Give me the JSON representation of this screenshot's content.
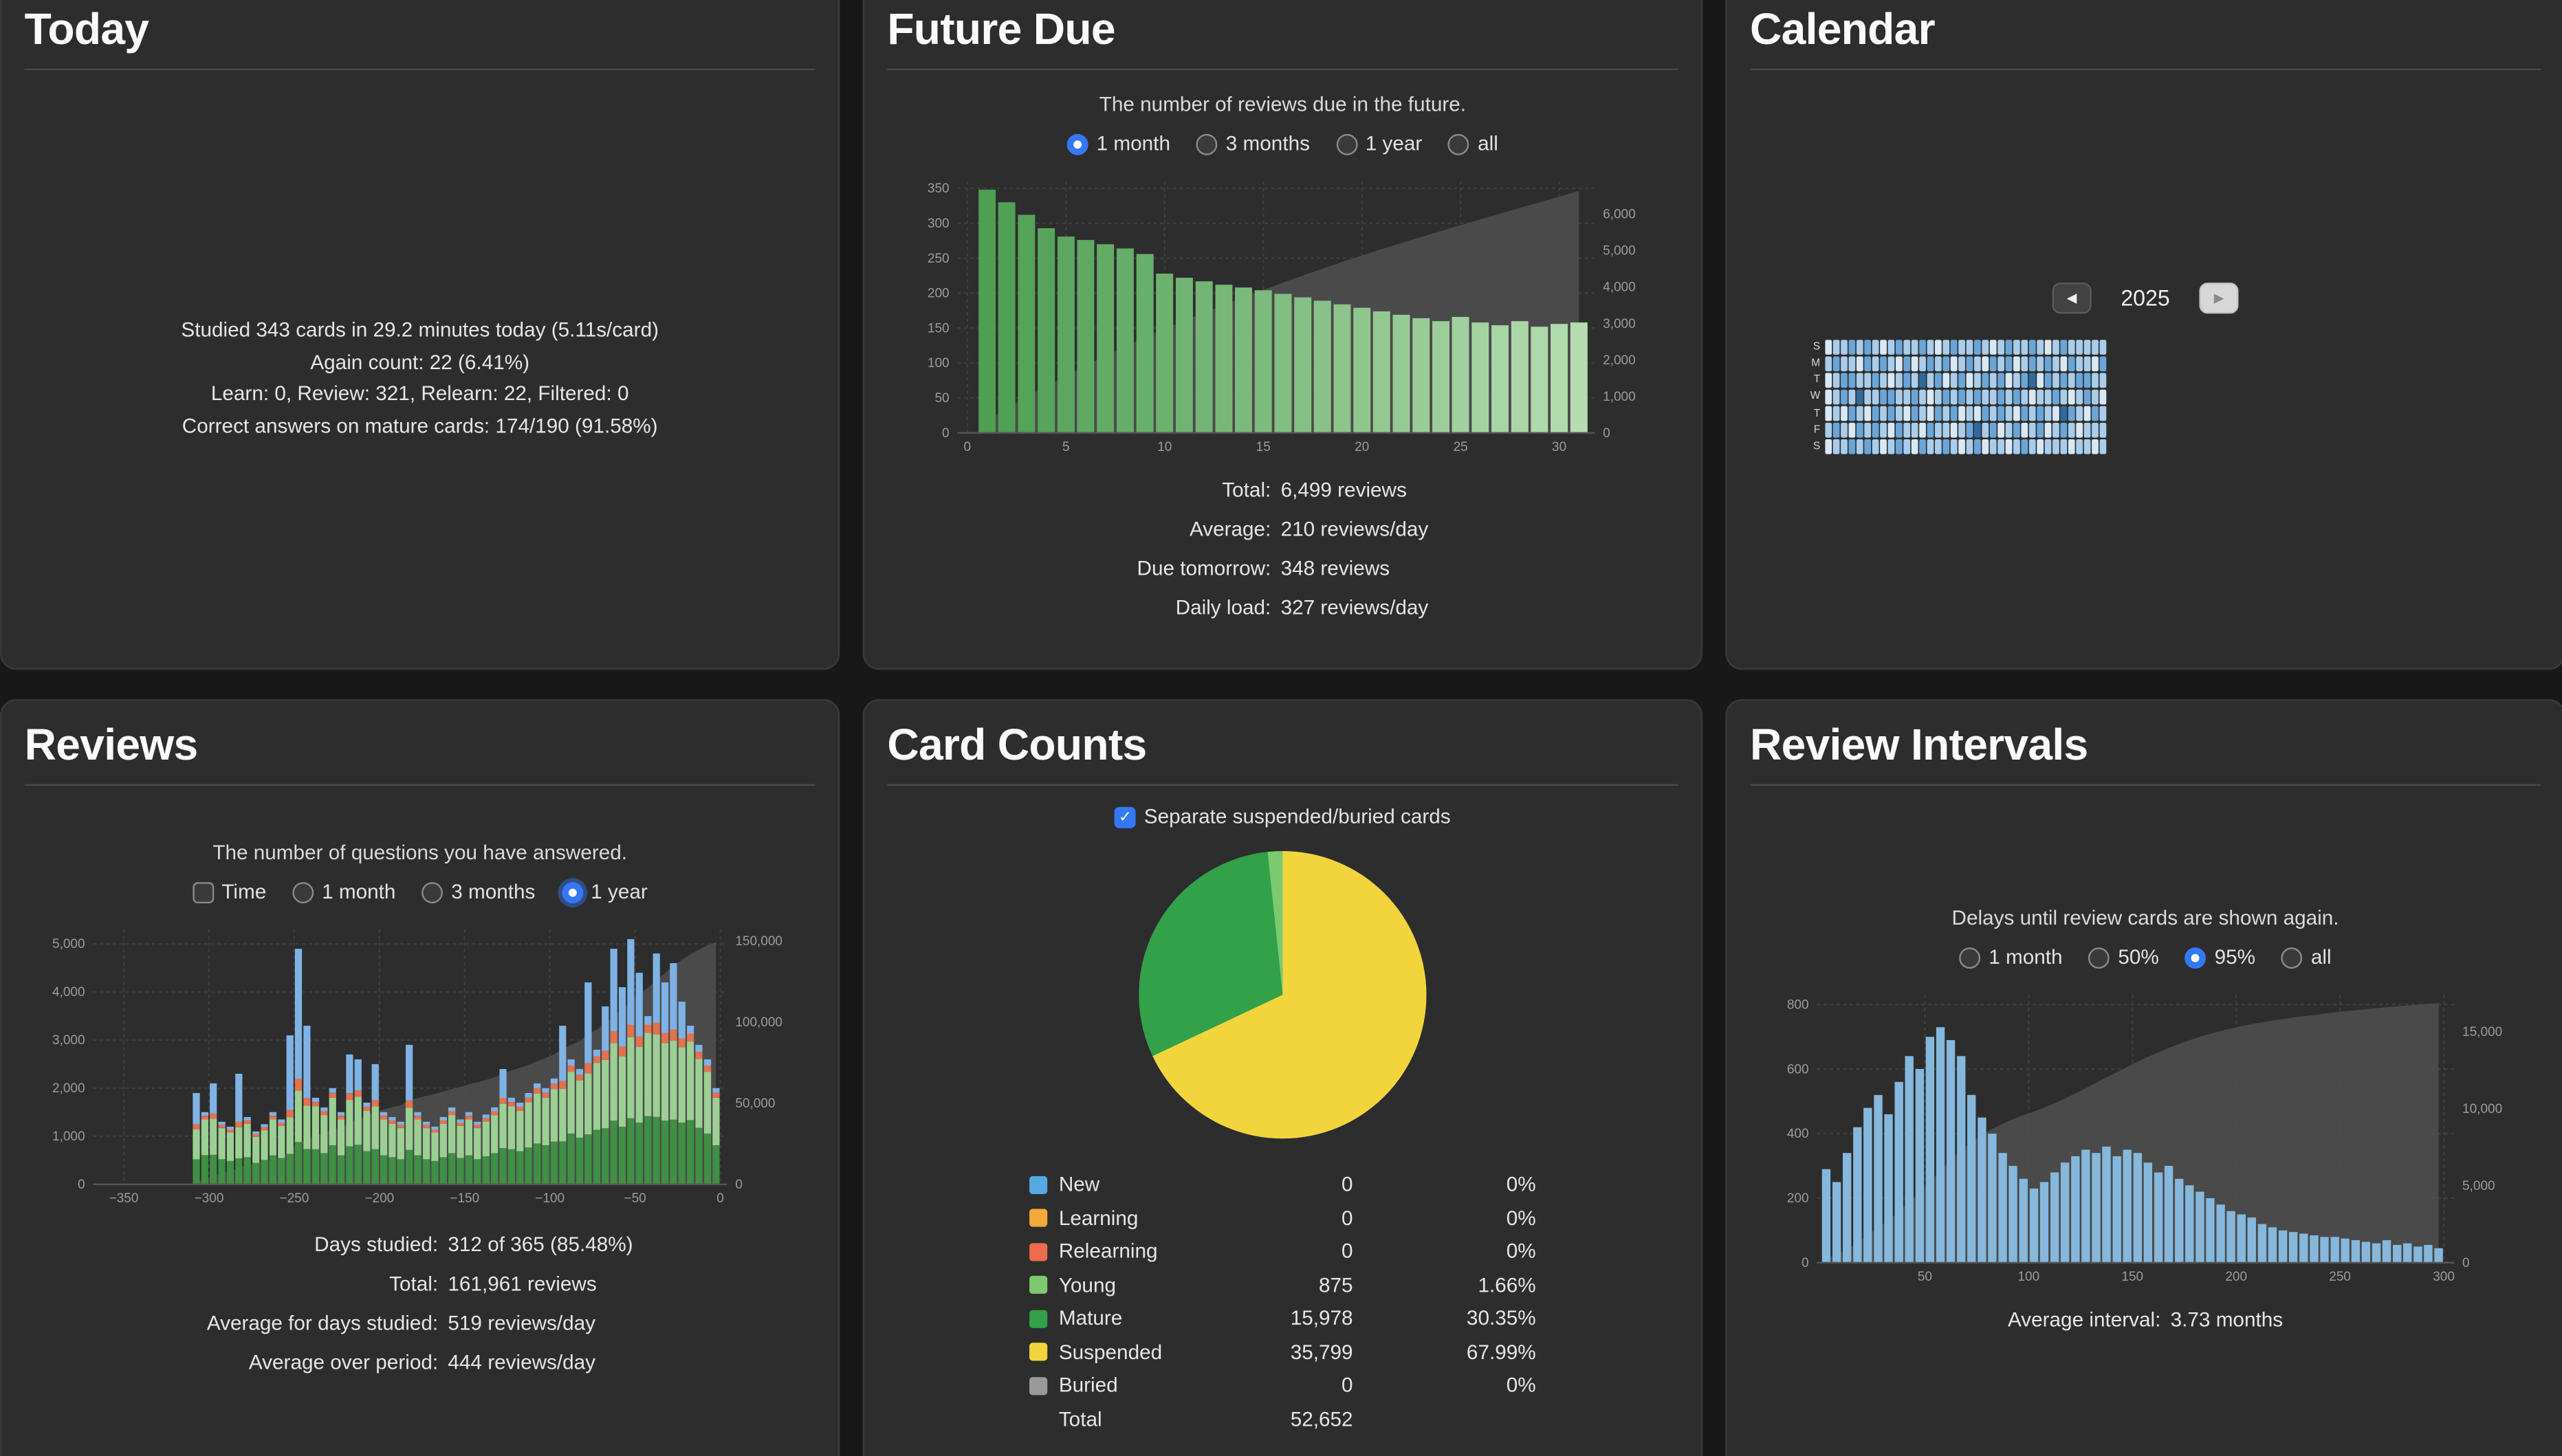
{
  "colors": {
    "accent": "#3478f6",
    "page_bg": "#181818",
    "panel_bg": "#2d2d2d",
    "cumulative_area": "#4d4d4d",
    "future_bar_start": "#4e9e53",
    "future_bar_end": "#b5ddb0",
    "intervals_bar": "#85b8dc",
    "reviews_series": {
      "mature": "#3f8f44",
      "young": "#9ccf93",
      "relearn": "#e4714e",
      "learn": "#7fb2e5"
    },
    "calendar_palette": [
      "#d9e8f5",
      "#a9cdea",
      "#6aa5d8",
      "#31699c"
    ],
    "legend": {
      "new": "#55a8e2",
      "learning": "#f5a83c",
      "relearning": "#ee6b4d",
      "young": "#7cc96f",
      "mature": "#33a04a",
      "suspended": "#f2d53d",
      "buried": "#9a9a9a"
    }
  },
  "panels": {
    "today": {
      "title": "Today",
      "lines": [
        "Studied 343 cards in 29.2 minutes today (5.11s/card)",
        "Again count: 22 (6.41%)",
        "Learn: 0, Review: 321, Relearn: 22, Filtered: 0",
        "Correct answers on mature cards: 174/190 (91.58%)"
      ]
    },
    "future_due": {
      "title": "Future Due",
      "subtitle": "The number of reviews due in the future.",
      "options": [
        {
          "label": "1 month",
          "selected": true
        },
        {
          "label": "3 months",
          "selected": false
        },
        {
          "label": "1 year",
          "selected": false
        },
        {
          "label": "all",
          "selected": false
        }
      ],
      "stats": [
        {
          "label": "Total:",
          "value": "6,499 reviews"
        },
        {
          "label": "Average:",
          "value": "210 reviews/day"
        },
        {
          "label": "Due tomorrow:",
          "value": "348 reviews"
        },
        {
          "label": "Daily load:",
          "value": "327 reviews/day"
        }
      ]
    },
    "calendar": {
      "title": "Calendar",
      "year": "2025",
      "prev_label": "◀",
      "next_label": "▶",
      "day_labels": [
        "S",
        "M",
        "T",
        "W",
        "T",
        "F",
        "S"
      ]
    },
    "reviews": {
      "title": "Reviews",
      "subtitle": "The number of questions you have answered.",
      "time_checkbox": {
        "label": "Time",
        "checked": false
      },
      "options": [
        {
          "label": "1 month",
          "selected": false
        },
        {
          "label": "3 months",
          "selected": false
        },
        {
          "label": "1 year",
          "selected": true,
          "focus_ring": true
        }
      ],
      "stats": [
        {
          "label": "Days studied:",
          "value": "312 of 365 (85.48%)"
        },
        {
          "label": "Total:",
          "value": "161,961 reviews"
        },
        {
          "label": "Average for days studied:",
          "value": "519 reviews/day"
        },
        {
          "label": "Average over period:",
          "value": "444 reviews/day"
        }
      ]
    },
    "card_counts": {
      "title": "Card Counts",
      "checkbox": {
        "label": "Separate suspended/buried cards",
        "checked": true
      },
      "rows": [
        {
          "label": "New",
          "count": "0",
          "pct": "0%",
          "pct_num": 0,
          "color_key": "new"
        },
        {
          "label": "Learning",
          "count": "0",
          "pct": "0%",
          "pct_num": 0,
          "color_key": "learning"
        },
        {
          "label": "Relearning",
          "count": "0",
          "pct": "0%",
          "pct_num": 0,
          "color_key": "relearning"
        },
        {
          "label": "Young",
          "count": "875",
          "pct": "1.66%",
          "pct_num": 1.66,
          "color_key": "young"
        },
        {
          "label": "Mature",
          "count": "15,978",
          "pct": "30.35%",
          "pct_num": 30.35,
          "color_key": "mature"
        },
        {
          "label": "Suspended",
          "count": "35,799",
          "pct": "67.99%",
          "pct_num": 67.99,
          "color_key": "suspended"
        },
        {
          "label": "Buried",
          "count": "0",
          "pct": "0%",
          "pct_num": 0,
          "color_key": "buried"
        }
      ],
      "total": {
        "label": "Total",
        "count": "52,652"
      }
    },
    "review_intervals": {
      "title": "Review Intervals",
      "subtitle": "Delays until review cards are shown again.",
      "options": [
        {
          "label": "1 month",
          "selected": false
        },
        {
          "label": "50%",
          "selected": false
        },
        {
          "label": "95%",
          "selected": true
        },
        {
          "label": "all",
          "selected": false
        }
      ],
      "average": {
        "label": "Average interval:",
        "value": "3.73 months"
      }
    }
  },
  "chart_data": [
    {
      "name": "future_due",
      "type": "bar",
      "title": "Future Due",
      "x_first_day": 1,
      "values": [
        348,
        330,
        312,
        293,
        281,
        276,
        270,
        264,
        256,
        228,
        222,
        217,
        212,
        208,
        204,
        199,
        194,
        189,
        184,
        179,
        174,
        169,
        164,
        160,
        166,
        158,
        154,
        160,
        152,
        156,
        158
      ],
      "x_domain": [
        -0.5,
        31.8
      ],
      "x_ticks": [
        0,
        5,
        10,
        15,
        20,
        25,
        30
      ],
      "left_axis": {
        "max": 360,
        "ticks": [
          0,
          50,
          100,
          150,
          200,
          250,
          300,
          350
        ]
      },
      "right_axis": {
        "max": 6900,
        "ticks": [
          0,
          1000,
          2000,
          3000,
          4000,
          5000,
          6000
        ]
      },
      "cumulative": true,
      "total_reviews": 6499
    },
    {
      "name": "calendar",
      "type": "heatmap",
      "year": 2025,
      "rows": 7,
      "weeks": 36,
      "matrix": [
        "1211121",
        "2322232",
        "2233122",
        "3232313",
        "2124232",
        "3322123",
        "2232332",
        "1323221",
        "2213312",
        "3122233",
        "2332122",
        "2123321",
        "3242213",
        "2321132",
        "1232322",
        "2313223",
        "3122312",
        "2233121",
        "2312232",
        "3223143",
        "2132321",
        "1322232",
        "2233312",
        "3312221",
        "2123132",
        "2232313",
        "3341222",
        "2212331",
        "1332212",
        "2223122",
        "3132432",
        "2321321",
        "2232212",
        "2233122",
        "2122321",
        "2321222"
      ]
    },
    {
      "name": "reviews",
      "type": "stacked_bar",
      "title": "Reviews",
      "bin_days": 5,
      "x_first": -307.5,
      "x_domain": [
        -368,
        4
      ],
      "x_ticks": [
        -350,
        -300,
        -250,
        -200,
        -150,
        -100,
        -50,
        0
      ],
      "left_axis": {
        "max": 5300,
        "ticks": [
          0,
          1000,
          2000,
          3000,
          4000,
          5000
        ]
      },
      "right_axis": {
        "max": 157000,
        "ticks": [
          0,
          50000,
          100000,
          150000
        ]
      },
      "cumulative": true,
      "total_reviews": 161961,
      "series": [
        {
          "key": "mature",
          "name": "Mature",
          "values": [
            520,
            610,
            615,
            525,
            485,
            535,
            565,
            445,
            505,
            605,
            545,
            630,
            880,
            735,
            730,
            650,
            810,
            605,
            790,
            820,
            690,
            730,
            605,
            565,
            525,
            720,
            605,
            525,
            485,
            565,
            650,
            545,
            605,
            525,
            585,
            650,
            755,
            730,
            690,
            770,
            850,
            810,
            890,
            895,
            1055,
            970,
            1040,
            1135,
            1165,
            1325,
            1200,
            1375,
            1285,
            1420,
            1405,
            1325,
            1345,
            1285,
            1335,
            1175,
            1055,
            810
          ]
        },
        {
          "key": "young",
          "name": "Young",
          "values": [
            630,
            740,
            750,
            645,
            595,
            650,
            695,
            545,
            620,
            745,
            670,
            765,
            1075,
            900,
            890,
            790,
            990,
            745,
            965,
            1000,
            840,
            895,
            745,
            695,
            645,
            875,
            745,
            645,
            595,
            695,
            790,
            670,
            745,
            645,
            720,
            790,
            925,
            890,
            840,
            940,
            1040,
            990,
            1090,
            1090,
            1285,
            1190,
            1270,
            1385,
            1425,
            1615,
            1465,
            1685,
            1575,
            1730,
            1715,
            1615,
            1645,
            1565,
            1635,
            1435,
            1285,
            990
          ]
        },
        {
          "key": "relearn",
          "name": "Relearning",
          "values": [
            100,
            75,
            105,
            65,
            60,
            115,
            70,
            55,
            65,
            75,
            65,
            155,
            245,
            165,
            90,
            80,
            100,
            75,
            135,
            130,
            85,
            125,
            75,
            70,
            65,
            145,
            75,
            65,
            60,
            70,
            80,
            65,
            75,
            65,
            75,
            80,
            120,
            90,
            85,
            95,
            105,
            100,
            110,
            165,
            130,
            120,
            210,
            140,
            185,
            245,
            205,
            255,
            220,
            175,
            240,
            210,
            230,
            190,
            165,
            145,
            130,
            100
          ]
        },
        {
          "key": "learn",
          "name": "Learning",
          "values": [
            650,
            75,
            630,
            65,
            60,
            1000,
            70,
            55,
            60,
            75,
            70,
            1550,
            2700,
            1500,
            90,
            80,
            100,
            75,
            810,
            650,
            85,
            750,
            75,
            70,
            65,
            1160,
            75,
            65,
            60,
            70,
            80,
            70,
            75,
            65,
            70,
            80,
            600,
            90,
            85,
            95,
            105,
            100,
            110,
            1150,
            130,
            120,
            1680,
            140,
            925,
            1715,
            1230,
            1785,
            1320,
            175,
            1440,
            1050,
            1380,
            760,
            165,
            145,
            130,
            100
          ]
        }
      ]
    },
    {
      "name": "card_counts",
      "type": "pie",
      "title": "Card Counts",
      "slices": [
        {
          "label": "Young",
          "value": 875,
          "pct": 1.66
        },
        {
          "label": "Mature",
          "value": 15978,
          "pct": 30.35
        },
        {
          "label": "Suspended",
          "value": 35799,
          "pct": 67.99
        }
      ],
      "draw_order": [
        "Suspended",
        "Mature",
        "Young"
      ],
      "total": 52652
    },
    {
      "name": "review_intervals",
      "type": "bar",
      "title": "Review Intervals",
      "bin_days": 5,
      "x_first": 2.5,
      "x_domain": [
        -2,
        305
      ],
      "x_ticks": [
        50,
        100,
        150,
        200,
        250,
        300
      ],
      "left_axis": {
        "max": 830,
        "ticks": [
          0,
          200,
          400,
          600,
          800
        ]
      },
      "right_axis": {
        "max": 17400,
        "ticks": [
          0,
          5000,
          10000,
          15000
        ]
      },
      "cumulative": true,
      "values": [
        290,
        250,
        340,
        420,
        480,
        520,
        460,
        560,
        640,
        600,
        700,
        730,
        690,
        640,
        520,
        450,
        400,
        340,
        300,
        260,
        230,
        250,
        280,
        310,
        330,
        350,
        340,
        360,
        330,
        350,
        340,
        310,
        280,
        300,
        260,
        240,
        220,
        200,
        180,
        160,
        150,
        140,
        120,
        110,
        100,
        95,
        90,
        85,
        80,
        80,
        75,
        70,
        65,
        60,
        70,
        55,
        60,
        50,
        55,
        45
      ]
    }
  ]
}
